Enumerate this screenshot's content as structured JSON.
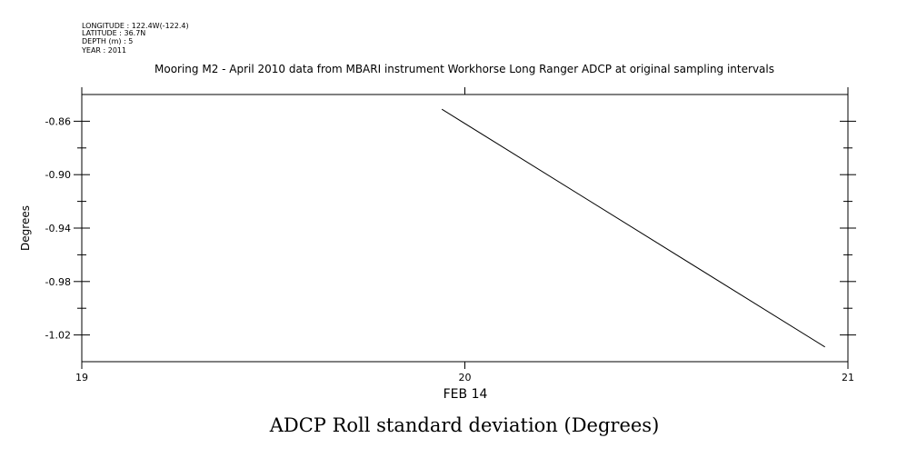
{
  "header": {
    "lines": [
      "LONGITUDE : 122.4W(-122.4)",
      "LATITUDE : 36.7N",
      "DEPTH (m) : 5",
      "YEAR : 2011"
    ],
    "subtitle": "Mooring M2 - April 2010 data from MBARI instrument Workhorse Long Ranger ADCP at original sampling intervals"
  },
  "chart_data": {
    "type": "line",
    "title": "ADCP Roll standard deviation (Degrees)",
    "xlabel": "FEB 14",
    "ylabel": "Degrees",
    "xlim": [
      19,
      21
    ],
    "ylim": [
      -1.04,
      -0.84
    ],
    "x_ticks": [
      19,
      20,
      21
    ],
    "y_ticks": [
      -0.86,
      -0.9,
      -0.94,
      -0.98,
      -1.02
    ],
    "y_tick_labels": [
      "-0.86",
      "-0.90",
      "-0.94",
      "-0.98",
      "-1.02"
    ],
    "series": [
      {
        "x": [
          19.94,
          20.94
        ],
        "values": [
          -0.851,
          -1.029
        ]
      }
    ],
    "grid": false
  }
}
